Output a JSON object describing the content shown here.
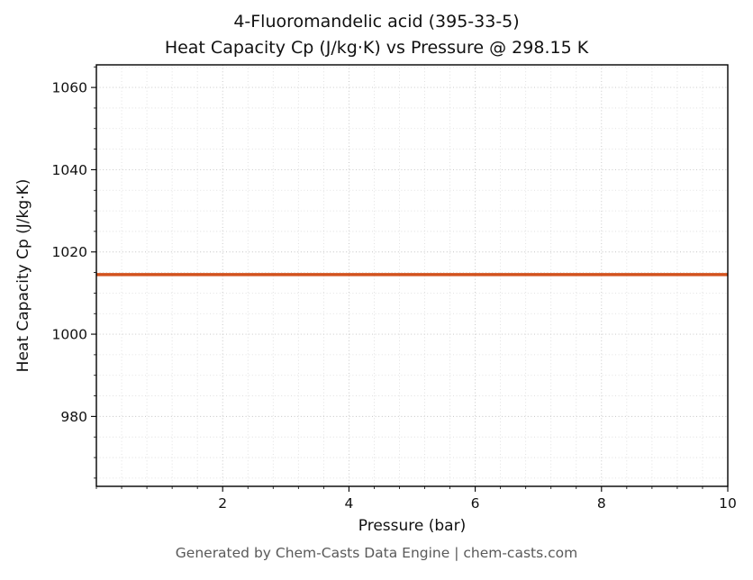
{
  "chart_data": {
    "type": "line",
    "title": [
      "4-Fluoromandelic acid (395-33-5)",
      "Heat Capacity Cp (J/kg·K) vs Pressure @ 298.15 K"
    ],
    "xlabel": "Pressure (bar)",
    "ylabel": "Heat Capacity Cp (J/kg·K)",
    "footer": "Generated by Chem-Casts Data Engine | chem-casts.com",
    "xlim": [
      0,
      10
    ],
    "ylim": [
      963,
      1065.5
    ],
    "xticks": [
      2,
      4,
      6,
      8,
      10
    ],
    "yticks": [
      980,
      1000,
      1020,
      1040,
      1060
    ],
    "x_minor_step": 0.4,
    "y_minor_step": 5,
    "grid_major_color": "#c2c2c2",
    "grid_minor_color": "#dadada",
    "axis_color": "#000000",
    "tick_label_color": "#111111",
    "series": [
      {
        "name": "Cp",
        "x": [
          0,
          10
        ],
        "y": [
          1014.5,
          1014.5
        ],
        "color": "#d2521e",
        "line_width": 3.5
      }
    ],
    "legend": "none",
    "grid": "both-dotted"
  }
}
